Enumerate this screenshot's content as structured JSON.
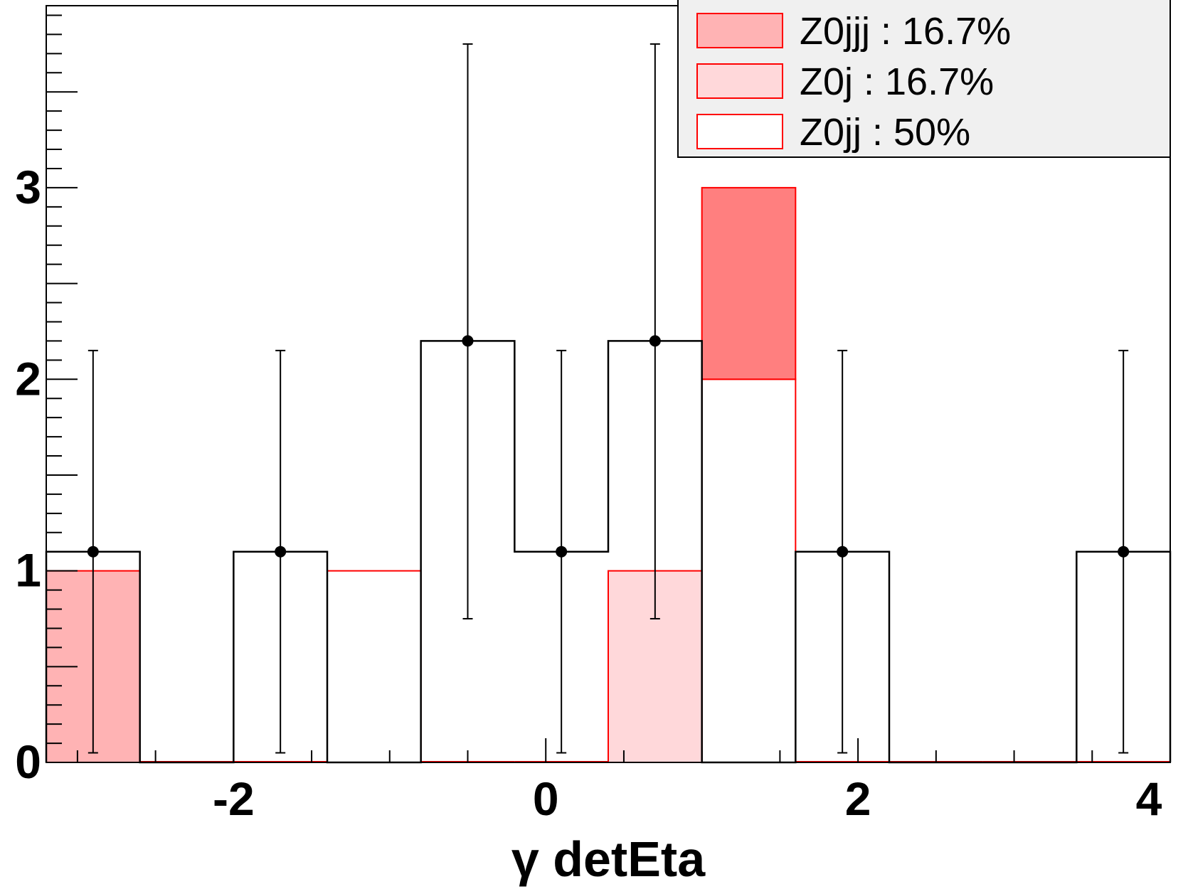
{
  "chart_data": {
    "type": "bar",
    "xlabel": "γ detEta",
    "ylabel": "",
    "xlim": [
      -3.2,
      4
    ],
    "ylim": [
      0,
      3.95
    ],
    "x_ticks": [
      {
        "value": -2,
        "label": "-2"
      },
      {
        "value": 0,
        "label": "0"
      },
      {
        "value": 2,
        "label": "2"
      },
      {
        "value": 4,
        "label": "4"
      }
    ],
    "y_ticks": [
      {
        "value": 0,
        "label": "0"
      },
      {
        "value": 1,
        "label": "1"
      },
      {
        "value": 2,
        "label": "2"
      },
      {
        "value": 3,
        "label": "3"
      }
    ],
    "bin_edges": [
      -3.2,
      -2.6,
      -2.0,
      -1.4,
      -0.8,
      -0.2,
      0.4,
      1.0,
      1.6,
      2.2,
      2.8,
      3.4,
      4.0
    ],
    "stacked_series": [
      {
        "name": "Z0jj : 50%",
        "color": "#ffffff",
        "values": [
          0,
          0,
          0,
          1,
          0,
          0,
          0,
          2,
          0,
          0,
          0,
          0
        ]
      },
      {
        "name": "Z0j : 16.7%",
        "color": "#ffd8da",
        "values": [
          0,
          0,
          0,
          0,
          0,
          0,
          1,
          0,
          0,
          0,
          0,
          0
        ]
      },
      {
        "name": "Z0jjj : 16.7%",
        "color": "#ffb3b4",
        "values": [
          1,
          0,
          0,
          0,
          0,
          0,
          0,
          0,
          0,
          0,
          0,
          0
        ]
      },
      {
        "name": "",
        "color": "#ff7f7f",
        "values": [
          0,
          0,
          0,
          0,
          0,
          0,
          0,
          1,
          0,
          0,
          0,
          0
        ]
      }
    ],
    "data_series": {
      "values": [
        1.1,
        0,
        1.1,
        0,
        2.2,
        1.1,
        2.2,
        0,
        1.1,
        0,
        0,
        1.1
      ],
      "err_low": [
        1.05,
        0,
        1.05,
        0,
        1.45,
        1.05,
        1.45,
        0,
        1.05,
        0,
        0,
        1.05
      ],
      "err_high": [
        1.05,
        0,
        1.05,
        0,
        1.55,
        1.05,
        1.55,
        0,
        1.05,
        0,
        0,
        1.05
      ]
    },
    "legend": {
      "placement": "top-right",
      "entries": [
        {
          "label": "Z0jjj : 16.7%",
          "color": "#ffb3b4"
        },
        {
          "label": "Z0j : 16.7%",
          "color": "#ffd8da"
        },
        {
          "label": "Z0jj : 50%",
          "color": "#ffffff"
        }
      ]
    }
  }
}
